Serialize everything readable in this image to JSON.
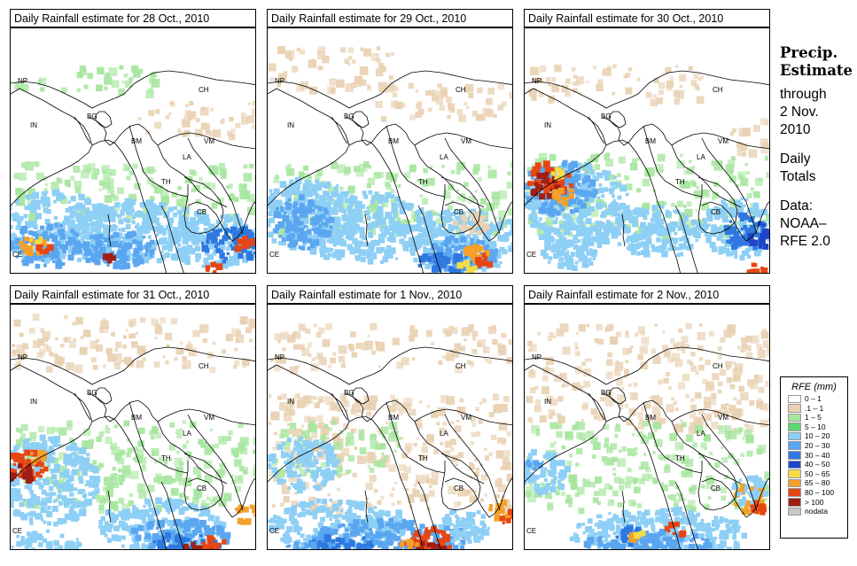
{
  "panels": [
    {
      "title": "Daily Rainfall estimate for  28 Oct., 2010",
      "scenario": "oct28"
    },
    {
      "title": "Daily Rainfall estimate for  29 Oct., 2010",
      "scenario": "oct29"
    },
    {
      "title": "Daily Rainfall estimate for  30 Oct., 2010",
      "scenario": "oct30"
    },
    {
      "title": "Daily Rainfall estimate for  31 Oct., 2010",
      "scenario": "oct31"
    },
    {
      "title": "Daily Rainfall estimate for  1 Nov., 2010",
      "scenario": "nov1"
    },
    {
      "title": "Daily Rainfall estimate for  2 Nov., 2010",
      "scenario": "nov2"
    }
  ],
  "country_labels": [
    "NP",
    "IN",
    "BG",
    "BM",
    "CH",
    "VM",
    "LA",
    "TH",
    "CB",
    "CE"
  ],
  "side": {
    "title_line1": "Precip.",
    "title_line2": "Estimate",
    "through": "through",
    "date_line1": "2 Nov.",
    "date_line2": "2010",
    "daily1": "Daily",
    "daily2": "Totals",
    "data1": "Data:",
    "data2": "NOAA–",
    "data3": "RFE 2.0"
  },
  "legend": {
    "title": "RFE (mm)",
    "items": [
      {
        "label": "0 – 1",
        "color": "#ffffff"
      },
      {
        "label": ".1 – 1",
        "color": "#e9d2b4"
      },
      {
        "label": "1 – 5",
        "color": "#a8e6a0"
      },
      {
        "label": "5 – 10",
        "color": "#5fd672"
      },
      {
        "label": "10 – 20",
        "color": "#8ecff5"
      },
      {
        "label": "20 – 30",
        "color": "#5aa6f0"
      },
      {
        "label": "30 – 40",
        "color": "#2f78e0"
      },
      {
        "label": "40 – 50",
        "color": "#1e46c8"
      },
      {
        "label": "50 – 65",
        "color": "#f5dc46"
      },
      {
        "label": "65 – 80",
        "color": "#f5a028"
      },
      {
        "label": "80 – 100",
        "color": "#e64614"
      },
      {
        "label": "> 100",
        "color": "#a01e14"
      },
      {
        "label": "nodata",
        "color": "#c8c8c8"
      }
    ]
  }
}
